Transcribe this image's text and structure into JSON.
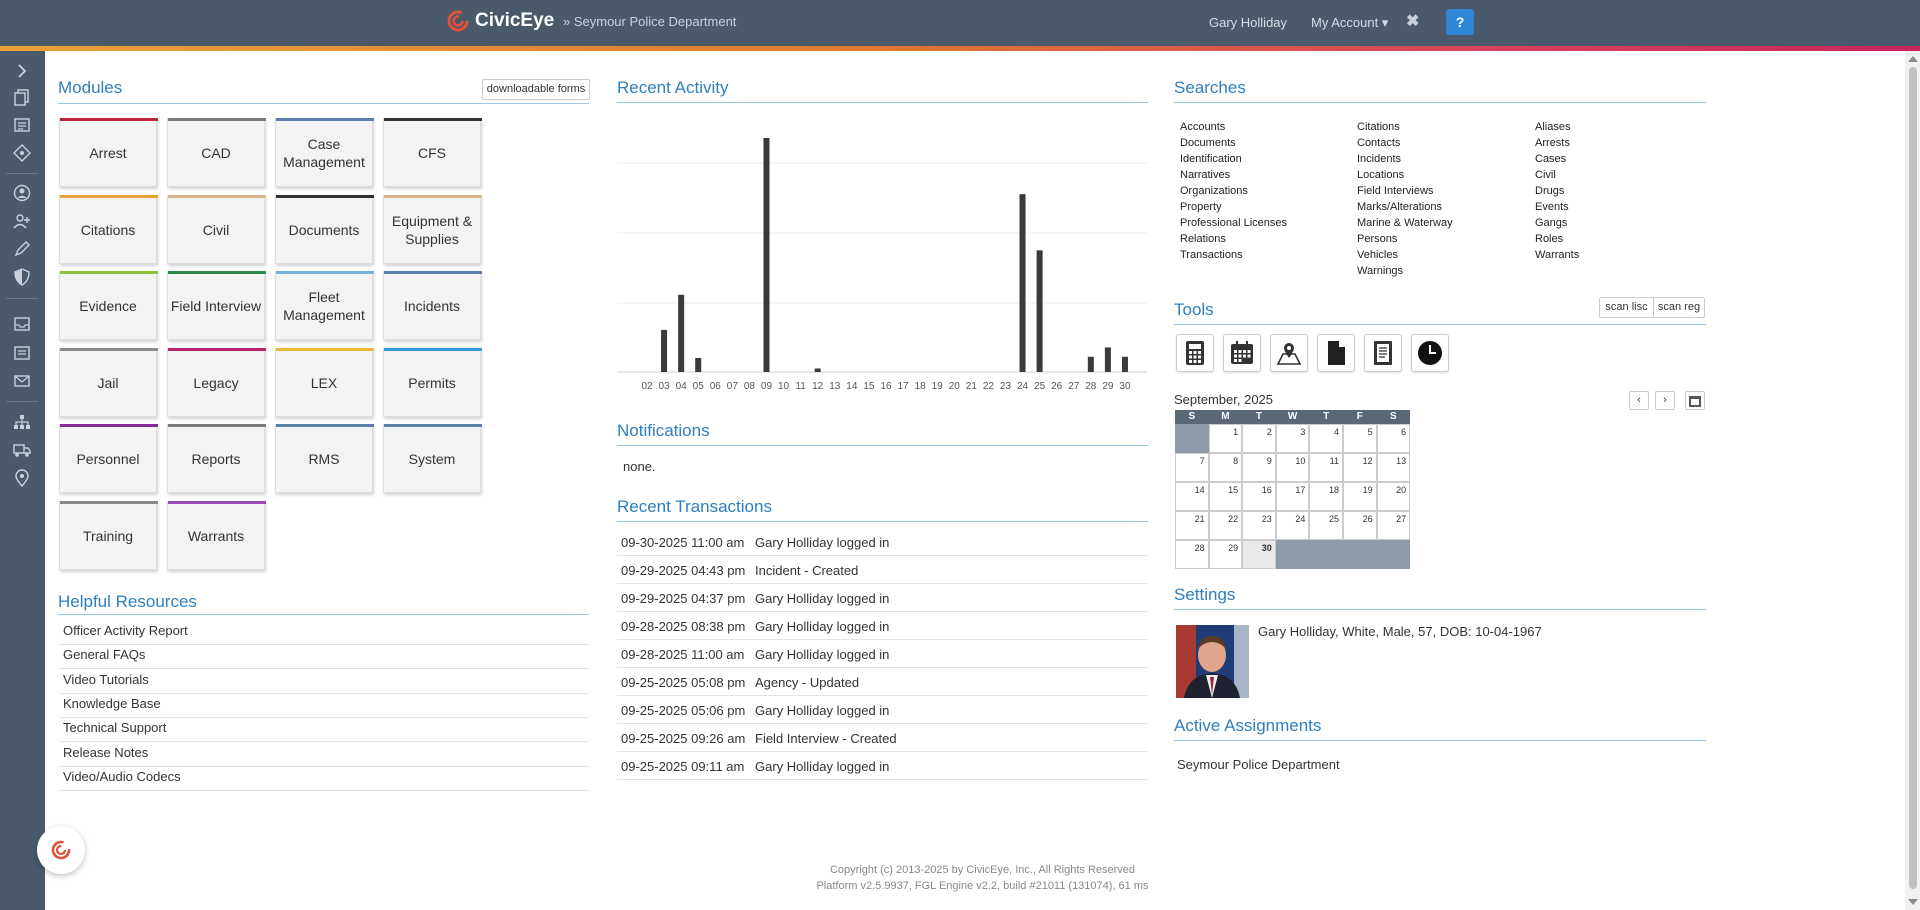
{
  "topbar": {
    "brand": "CivicEye",
    "department": "» Seymour Police Department",
    "user": "Gary Holliday",
    "account": "My Account ▾",
    "close_glyph": "✖",
    "help": "?"
  },
  "nav_icons": [
    "chevron-right-icon",
    "copy-icon",
    "list-icon",
    "tag-icon",
    "user-circle-icon",
    "user-plus-icon",
    "pen-icon",
    "shield-icon",
    "inbox-icon",
    "document-icon",
    "mail-icon",
    "hierarchy-icon",
    "truck-icon",
    "map-pin-icon"
  ],
  "modules": {
    "title": "Modules",
    "download_forms": "downloadable forms",
    "items": [
      {
        "label": "Arrest",
        "color": "#c0253a"
      },
      {
        "label": "CAD",
        "color": "#7a7a7a"
      },
      {
        "label": "Case Management",
        "color": "#5b7fa8"
      },
      {
        "label": "CFS",
        "color": "#333333"
      },
      {
        "label": "Citations",
        "color": "#e8a23a"
      },
      {
        "label": "Civil",
        "color": "#d8b58a"
      },
      {
        "label": "Documents",
        "color": "#333333"
      },
      {
        "label": "Equipment & Supplies",
        "color": "#d8b58a"
      },
      {
        "label": "Evidence",
        "color": "#8ac23a"
      },
      {
        "label": "Field Interview",
        "color": "#2a8a4a"
      },
      {
        "label": "Fleet Management",
        "color": "#7ab0d8"
      },
      {
        "label": "Incidents",
        "color": "#5b7fa8"
      },
      {
        "label": "Jail",
        "color": "#8a8a8a"
      },
      {
        "label": "Legacy",
        "color": "#b8256a"
      },
      {
        "label": "LEX",
        "color": "#e8b83a"
      },
      {
        "label": "Permits",
        "color": "#3a9ad8"
      },
      {
        "label": "Personnel",
        "color": "#8a2a9a"
      },
      {
        "label": "Reports",
        "color": "#7a7a7a"
      },
      {
        "label": "RMS",
        "color": "#5b7fa8"
      },
      {
        "label": "System",
        "color": "#5b7fa8"
      },
      {
        "label": "Training",
        "color": "#8a8a8a"
      },
      {
        "label": "Warrants",
        "color": "#9a4ab8"
      }
    ]
  },
  "resources": {
    "title": "Helpful Resources",
    "items": [
      "Officer Activity Report",
      "General FAQs",
      "Video Tutorials",
      "Knowledge Base",
      "Technical Support",
      "Release Notes",
      "Video/Audio Codecs"
    ]
  },
  "recent_activity": {
    "title": "Recent Activity"
  },
  "chart_data": {
    "type": "bar",
    "categories": [
      "02",
      "03",
      "04",
      "05",
      "06",
      "07",
      "08",
      "09",
      "10",
      "11",
      "12",
      "13",
      "14",
      "15",
      "16",
      "17",
      "18",
      "19",
      "20",
      "21",
      "22",
      "23",
      "24",
      "25",
      "26",
      "27",
      "28",
      "29",
      "30"
    ],
    "values": [
      0,
      18,
      33,
      6,
      0,
      0,
      0,
      100,
      0,
      0,
      1.5,
      0,
      0,
      0,
      0,
      0,
      0,
      0,
      0,
      0,
      0,
      0,
      76,
      52,
      0,
      0,
      6.5,
      10.5,
      6.5
    ],
    "ylim": [
      0,
      100
    ],
    "grid": true,
    "bar_color": "#3a3a3a"
  },
  "notifications": {
    "title": "Notifications",
    "text": "none."
  },
  "transactions": {
    "title": "Recent Transactions",
    "rows": [
      {
        "date": "09-30-2025 11:00 am",
        "desc": "Gary Holliday logged in"
      },
      {
        "date": "09-29-2025 04:43 pm",
        "desc": "Incident - Created"
      },
      {
        "date": "09-29-2025 04:37 pm",
        "desc": "Gary Holliday logged in"
      },
      {
        "date": "09-28-2025 08:38 pm",
        "desc": "Gary Holliday logged in"
      },
      {
        "date": "09-28-2025 11:00 am",
        "desc": "Gary Holliday logged in"
      },
      {
        "date": "09-25-2025 05:08 pm",
        "desc": "Agency - Updated"
      },
      {
        "date": "09-25-2025 05:06 pm",
        "desc": "Gary Holliday logged in"
      },
      {
        "date": "09-25-2025 09:26 am",
        "desc": "Field Interview - Created"
      },
      {
        "date": "09-25-2025 09:11 am",
        "desc": "Gary Holliday logged in"
      }
    ]
  },
  "searches": {
    "title": "Searches",
    "columns": [
      [
        "Accounts",
        "Documents",
        "Identification",
        "Narratives",
        "Organizations",
        "Property",
        "Professional Licenses",
        "Relations",
        "Transactions"
      ],
      [
        "Citations",
        "Contacts",
        "Incidents",
        "Locations",
        "Field Interviews",
        "Marks/Alterations",
        "Marine & Waterway",
        "Persons",
        "Vehicles",
        "Warnings"
      ],
      [
        "Aliases",
        "Arrests",
        "Cases",
        "Civil",
        "Drugs",
        "Events",
        "Gangs",
        "Roles",
        "Warrants"
      ]
    ]
  },
  "tools": {
    "title": "Tools",
    "scan_lisc": "scan lisc",
    "scan_reg": "scan reg",
    "icons": [
      "calculator-icon",
      "calendar-icon",
      "map-icon",
      "file-icon",
      "notebook-icon",
      "clock-icon"
    ]
  },
  "calendar": {
    "title": "September, 2025",
    "prev": "‹",
    "next": "›",
    "day_heads": [
      "S",
      "M",
      "T",
      "W",
      "T",
      "F",
      "S"
    ],
    "weeks": [
      [
        "",
        "1",
        "2",
        "3",
        "4",
        "5",
        "6"
      ],
      [
        "7",
        "8",
        "9",
        "10",
        "11",
        "12",
        "13"
      ],
      [
        "14",
        "15",
        "16",
        "17",
        "18",
        "19",
        "20"
      ],
      [
        "21",
        "22",
        "23",
        "24",
        "25",
        "26",
        "27"
      ],
      [
        "28",
        "29",
        "30",
        "",
        "",
        "",
        ""
      ]
    ],
    "today": "30"
  },
  "settings": {
    "title": "Settings",
    "profile": "Gary Holliday, White, Male, 57, DOB: 10-04-1967"
  },
  "assignments": {
    "title": "Active Assignments",
    "item": "Seymour Police Department"
  },
  "footer": {
    "copyright": "Copyright (c) 2013-2025 by CivicEye, Inc., All Rights Reserved",
    "platform": "Platform v2.5.9937, FGL Engine v2.2, build #21011 (131074), 61 ms"
  }
}
